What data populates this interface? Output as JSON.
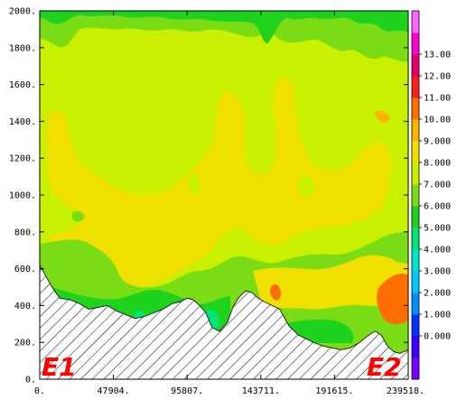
{
  "chart_data": {
    "type": "heatmap",
    "title": "",
    "xlabel": "",
    "ylabel": "",
    "xlim": [
      0,
      239518
    ],
    "ylim": [
      0,
      2000
    ],
    "x_ticks": [
      "0.",
      "47904.",
      "95807.",
      "143711.",
      "191615.",
      "239518."
    ],
    "y_ticks": [
      "0.",
      "200.",
      "400.",
      "600.",
      "800.",
      "1000.",
      "1200.",
      "1400.",
      "1600.",
      "1800.",
      "2000."
    ],
    "colorbar": {
      "labels": [
        "0.000",
        "1.000",
        "2.000",
        "3.000",
        "4.000",
        "5.000",
        "6.000",
        "7.000",
        "8.000",
        "9.000",
        "10.00",
        "11.00",
        "12.00",
        "13.00"
      ],
      "colors": [
        "#7b00ff",
        "#3c00ff",
        "#0033ff",
        "#0090ff",
        "#00c8ff",
        "#00e6c8",
        "#00e676",
        "#1ed21e",
        "#7adc14",
        "#c8f000",
        "#f0e000",
        "#ffb400",
        "#ff6e00",
        "#ff1e1e",
        "#e6006e",
        "#ff00d2",
        "#ff64ff"
      ]
    },
    "terrain": [
      [
        0,
        620
      ],
      [
        4000,
        560
      ],
      [
        8000,
        500
      ],
      [
        13000,
        440
      ],
      [
        20000,
        430
      ],
      [
        26000,
        410
      ],
      [
        32000,
        380
      ],
      [
        38000,
        390
      ],
      [
        44000,
        400
      ],
      [
        50000,
        370
      ],
      [
        56000,
        350
      ],
      [
        62000,
        330
      ],
      [
        68000,
        340
      ],
      [
        74000,
        360
      ],
      [
        80000,
        380
      ],
      [
        86000,
        410
      ],
      [
        91000,
        420
      ],
      [
        96000,
        440
      ],
      [
        100000,
        430
      ],
      [
        104000,
        400
      ],
      [
        108000,
        360
      ],
      [
        112000,
        280
      ],
      [
        117000,
        260
      ],
      [
        122000,
        310
      ],
      [
        126000,
        400
      ],
      [
        130000,
        450
      ],
      [
        134000,
        480
      ],
      [
        138000,
        470
      ],
      [
        142000,
        440
      ],
      [
        146000,
        420
      ],
      [
        151000,
        400
      ],
      [
        156000,
        380
      ],
      [
        162000,
        290
      ],
      [
        168000,
        240
      ],
      [
        173000,
        220
      ],
      [
        178000,
        200
      ],
      [
        184000,
        180
      ],
      [
        190000,
        170
      ],
      [
        196000,
        160
      ],
      [
        202000,
        170
      ],
      [
        208000,
        200
      ],
      [
        214000,
        240
      ],
      [
        218000,
        260
      ],
      [
        222000,
        240
      ],
      [
        226000,
        180
      ],
      [
        230000,
        150
      ],
      [
        234000,
        140
      ],
      [
        239518,
        160
      ]
    ],
    "annotations": [
      "E1",
      "E2"
    ]
  }
}
